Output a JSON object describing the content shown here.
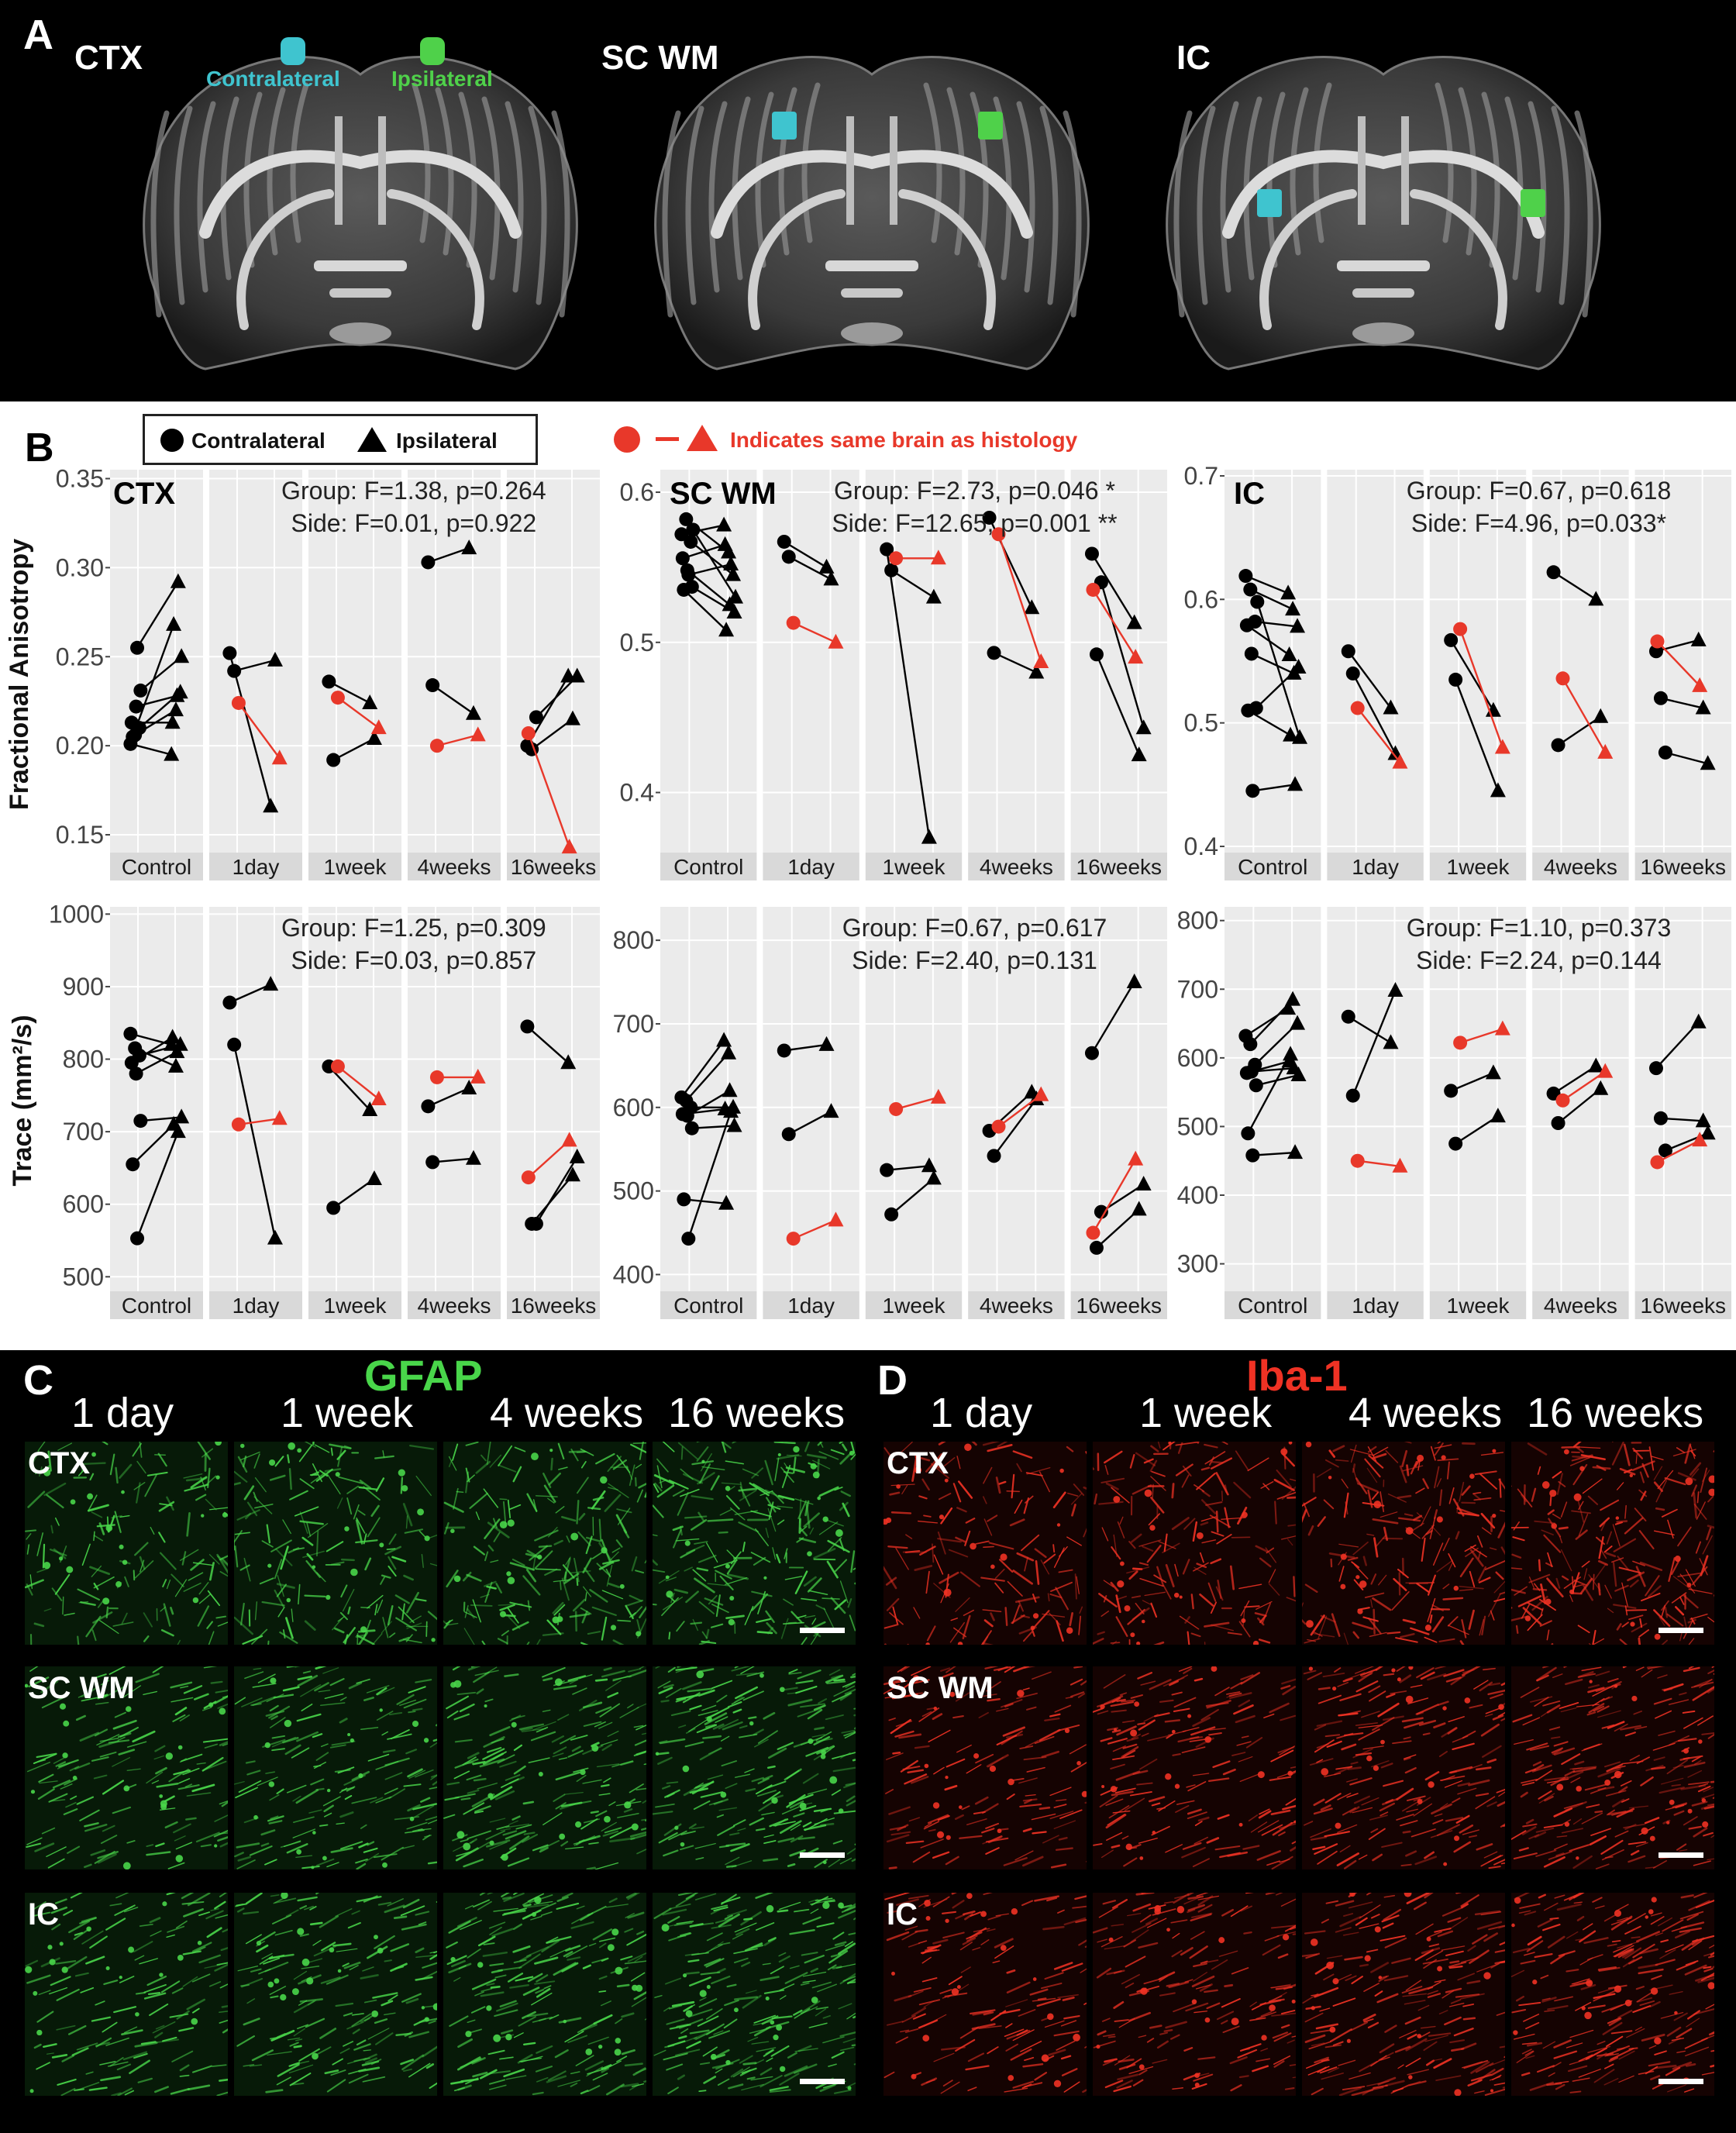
{
  "panelA": {
    "label": "A",
    "brains": [
      {
        "title": "CTX",
        "contra_label": "Contralateral",
        "ipsi_label": "Ipsilateral"
      },
      {
        "title": "SC WM"
      },
      {
        "title": "IC"
      }
    ],
    "colors": {
      "contralateral": "#3fc4cf",
      "ipsilateral": "#4fd14a"
    }
  },
  "panelB": {
    "label": "B",
    "legend": {
      "contralateral": "Contralateral",
      "ipsilateral": "Ipsilateral",
      "histology": "Indicates same brain as histology"
    },
    "fa_ylabel": "Fractional Anisotropy",
    "trace_ylabel": "Trace (mm²/s)",
    "groups": [
      "Control",
      "1day",
      "1week",
      "4weeks",
      "16weeks"
    ],
    "colors": {
      "black": "#000000",
      "red": "#e8382a",
      "panel_bg": "#ebebeb",
      "grid": "#ffffff"
    }
  },
  "chart_data": [
    {
      "type": "scatter",
      "title": "CTX",
      "ylabel": "Fractional Anisotropy",
      "ylim": [
        0.14,
        0.355
      ],
      "yticks": [
        "0.35",
        "0.30",
        "0.25",
        "0.20",
        "0.15"
      ],
      "ytick_values": [
        0.35,
        0.3,
        0.25,
        0.2,
        0.15
      ],
      "stats": [
        "Group: F=1.38, p=0.264",
        "Side: F=0.01, p=0.922"
      ],
      "groups": [
        "Control",
        "1day",
        "1week",
        "4weeks",
        "16weeks"
      ],
      "pairs": [
        [
          [
            0.201,
            0.195,
            "b"
          ],
          [
            0.206,
            0.22,
            "b"
          ],
          [
            0.21,
            0.23,
            "b"
          ],
          [
            0.213,
            0.213,
            "b"
          ],
          [
            0.222,
            0.228,
            "b"
          ],
          [
            0.231,
            0.25,
            "b"
          ],
          [
            0.205,
            0.268,
            "b"
          ],
          [
            0.255,
            0.292,
            "b"
          ]
        ],
        [
          [
            0.252,
            0.166,
            "b"
          ],
          [
            0.242,
            0.248,
            "b"
          ],
          [
            0.224,
            0.193,
            "r"
          ]
        ],
        [
          [
            0.236,
            0.224,
            "b"
          ],
          [
            0.192,
            0.204,
            "b"
          ],
          [
            0.227,
            0.21,
            "r"
          ]
        ],
        [
          [
            0.303,
            0.311,
            "b"
          ],
          [
            0.234,
            0.218,
            "b"
          ],
          [
            0.2,
            0.206,
            "r"
          ]
        ],
        [
          [
            0.2,
            0.239,
            "b"
          ],
          [
            0.198,
            0.215,
            "b"
          ],
          [
            0.216,
            0.239,
            "b"
          ],
          [
            0.207,
            0.143,
            "r"
          ]
        ]
      ]
    },
    {
      "type": "scatter",
      "title": "SC WM",
      "ylim": [
        0.36,
        0.615
      ],
      "yticks": [
        "0.6",
        "0.5",
        "0.4"
      ],
      "ytick_values": [
        0.6,
        0.5,
        0.4
      ],
      "stats": [
        "Group: F=2.73, p=0.046 *",
        "Side: F=12.65, p=0.001 **"
      ],
      "groups": [
        "Control",
        "1day",
        "1week",
        "4weeks",
        "16weeks"
      ],
      "pairs": [
        [
          [
            0.572,
            0.578,
            "b"
          ],
          [
            0.582,
            0.56,
            "b"
          ],
          [
            0.567,
            0.545,
            "b"
          ],
          [
            0.556,
            0.565,
            "b"
          ],
          [
            0.548,
            0.525,
            "b"
          ],
          [
            0.537,
            0.52,
            "b"
          ],
          [
            0.535,
            0.508,
            "b"
          ],
          [
            0.545,
            0.552,
            "b"
          ],
          [
            0.575,
            0.53,
            "b"
          ]
        ],
        [
          [
            0.567,
            0.55,
            "b"
          ],
          [
            0.557,
            0.542,
            "b"
          ],
          [
            0.513,
            0.5,
            "r"
          ]
        ],
        [
          [
            0.562,
            0.37,
            "b"
          ],
          [
            0.548,
            0.53,
            "b"
          ],
          [
            0.556,
            0.556,
            "r"
          ]
        ],
        [
          [
            0.583,
            0.523,
            "b"
          ],
          [
            0.493,
            0.48,
            "b"
          ],
          [
            0.572,
            0.487,
            "r"
          ]
        ],
        [
          [
            0.559,
            0.513,
            "b"
          ],
          [
            0.492,
            0.425,
            "b"
          ],
          [
            0.54,
            0.443,
            "b"
          ],
          [
            0.535,
            0.49,
            "r"
          ]
        ]
      ]
    },
    {
      "type": "scatter",
      "title": "IC",
      "ylim": [
        0.395,
        0.705
      ],
      "yticks": [
        "0.7",
        "0.6",
        "0.5",
        "0.4"
      ],
      "ytick_values": [
        0.7,
        0.6,
        0.5,
        0.4
      ],
      "stats": [
        "Group: F=0.67, p=0.618",
        "Side: F=4.96, p=0.033*"
      ],
      "groups": [
        "Control",
        "1day",
        "1week",
        "4weeks",
        "16weeks"
      ],
      "pairs": [
        [
          [
            0.619,
            0.605,
            "b"
          ],
          [
            0.608,
            0.592,
            "b"
          ],
          [
            0.582,
            0.578,
            "b"
          ],
          [
            0.579,
            0.555,
            "b"
          ],
          [
            0.556,
            0.54,
            "b"
          ],
          [
            0.512,
            0.545,
            "b"
          ],
          [
            0.51,
            0.49,
            "b"
          ],
          [
            0.445,
            0.45,
            "b"
          ],
          [
            0.598,
            0.488,
            "b"
          ]
        ],
        [
          [
            0.558,
            0.512,
            "b"
          ],
          [
            0.54,
            0.475,
            "b"
          ],
          [
            0.512,
            0.468,
            "r"
          ]
        ],
        [
          [
            0.567,
            0.51,
            "b"
          ],
          [
            0.535,
            0.445,
            "b"
          ],
          [
            0.576,
            0.48,
            "r"
          ]
        ],
        [
          [
            0.622,
            0.6,
            "b"
          ],
          [
            0.482,
            0.505,
            "b"
          ],
          [
            0.536,
            0.476,
            "r"
          ]
        ],
        [
          [
            0.558,
            0.567,
            "b"
          ],
          [
            0.52,
            0.512,
            "b"
          ],
          [
            0.476,
            0.467,
            "b"
          ],
          [
            0.566,
            0.53,
            "r"
          ]
        ]
      ]
    },
    {
      "type": "scatter",
      "title": "",
      "ylabel": "Trace (mm²/s)",
      "ylim": [
        480,
        1010
      ],
      "yticks": [
        "1000",
        "900",
        "800",
        "700",
        "600",
        "500"
      ],
      "ytick_values": [
        1000,
        900,
        800,
        700,
        600,
        500
      ],
      "stats": [
        "Group: F=1.25, p=0.309",
        "Side: F=0.03, p=0.857"
      ],
      "groups": [
        "Control",
        "1day",
        "1week",
        "4weeks",
        "16weeks"
      ],
      "pairs": [
        [
          [
            835,
            820,
            "b"
          ],
          [
            815,
            790,
            "b"
          ],
          [
            805,
            820,
            "b"
          ],
          [
            795,
            830,
            "b"
          ],
          [
            780,
            810,
            "b"
          ],
          [
            715,
            720,
            "b"
          ],
          [
            655,
            710,
            "b"
          ],
          [
            553,
            700,
            "b"
          ]
        ],
        [
          [
            878,
            903,
            "b"
          ],
          [
            820,
            553,
            "b"
          ],
          [
            710,
            718,
            "r"
          ]
        ],
        [
          [
            790,
            730,
            "b"
          ],
          [
            595,
            635,
            "b"
          ],
          [
            790,
            745,
            "r"
          ]
        ],
        [
          [
            735,
            760,
            "b"
          ],
          [
            658,
            663,
            "b"
          ],
          [
            775,
            775,
            "r"
          ]
        ],
        [
          [
            845,
            795,
            "b"
          ],
          [
            573,
            640,
            "b"
          ],
          [
            573,
            665,
            "b"
          ],
          [
            637,
            688,
            "r"
          ]
        ]
      ]
    },
    {
      "type": "scatter",
      "title": "",
      "ylim": [
        380,
        840
      ],
      "yticks": [
        "800",
        "700",
        "600",
        "500",
        "400"
      ],
      "ytick_values": [
        800,
        700,
        600,
        500,
        400
      ],
      "stats": [
        "Group: F=0.67, p=0.617",
        "Side: F=2.40, p=0.131"
      ],
      "groups": [
        "Control",
        "1day",
        "1week",
        "4weeks",
        "16weeks"
      ],
      "pairs": [
        [
          [
            612,
            680,
            "b"
          ],
          [
            608,
            665,
            "b"
          ],
          [
            600,
            600,
            "b"
          ],
          [
            592,
            598,
            "b"
          ],
          [
            590,
            620,
            "b"
          ],
          [
            575,
            578,
            "b"
          ],
          [
            490,
            485,
            "b"
          ],
          [
            443,
            595,
            "b"
          ]
        ],
        [
          [
            668,
            675,
            "b"
          ],
          [
            568,
            595,
            "b"
          ],
          [
            443,
            465,
            "r"
          ]
        ],
        [
          [
            525,
            530,
            "b"
          ],
          [
            472,
            515,
            "b"
          ],
          [
            598,
            612,
            "r"
          ]
        ],
        [
          [
            572,
            618,
            "b"
          ],
          [
            542,
            610,
            "b"
          ],
          [
            577,
            615,
            "r"
          ]
        ],
        [
          [
            665,
            750,
            "b"
          ],
          [
            432,
            478,
            "b"
          ],
          [
            475,
            508,
            "b"
          ],
          [
            450,
            538,
            "r"
          ]
        ]
      ]
    },
    {
      "type": "scatter",
      "title": "",
      "ylim": [
        260,
        820
      ],
      "yticks": [
        "800",
        "700",
        "600",
        "500",
        "400",
        "300"
      ],
      "ytick_values": [
        800,
        700,
        600,
        500,
        400,
        300
      ],
      "stats": [
        "Group: F=1.10, p=0.373",
        "Side: F=2.24, p=0.144"
      ],
      "groups": [
        "Control",
        "1day",
        "1week",
        "4weeks",
        "16weeks"
      ],
      "pairs": [
        [
          [
            632,
            672,
            "b"
          ],
          [
            620,
            685,
            "b"
          ],
          [
            590,
            650,
            "b"
          ],
          [
            578,
            595,
            "b"
          ],
          [
            580,
            585,
            "b"
          ],
          [
            560,
            575,
            "b"
          ],
          [
            490,
            605,
            "b"
          ],
          [
            458,
            462,
            "b"
          ]
        ],
        [
          [
            660,
            622,
            "b"
          ],
          [
            545,
            698,
            "b"
          ],
          [
            450,
            442,
            "r"
          ]
        ],
        [
          [
            552,
            578,
            "b"
          ],
          [
            475,
            515,
            "b"
          ],
          [
            622,
            642,
            "r"
          ]
        ],
        [
          [
            548,
            588,
            "b"
          ],
          [
            505,
            555,
            "b"
          ],
          [
            538,
            580,
            "r"
          ]
        ],
        [
          [
            585,
            652,
            "b"
          ],
          [
            512,
            508,
            "b"
          ],
          [
            465,
            490,
            "b"
          ],
          [
            448,
            480,
            "r"
          ]
        ]
      ]
    }
  ],
  "panelC": {
    "label": "C",
    "title": "GFAP",
    "timepoints": [
      "1 day",
      "1 week",
      "4 weeks",
      "16 weeks"
    ],
    "regions": [
      "CTX",
      "SC WM",
      "IC"
    ],
    "color": "#49d64a"
  },
  "panelD": {
    "label": "D",
    "title": "Iba-1",
    "timepoints": [
      "1 day",
      "1 week",
      "4 weeks",
      "16 weeks"
    ],
    "regions": [
      "CTX",
      "SC WM",
      "IC"
    ],
    "color": "#ef3224"
  }
}
